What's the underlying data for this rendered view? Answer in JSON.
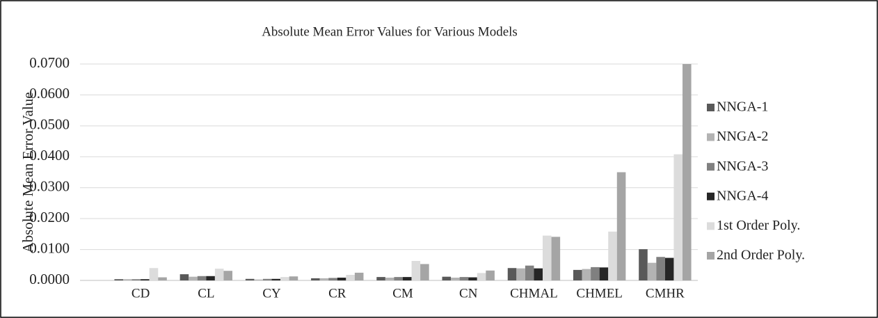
{
  "chart_data": {
    "type": "bar",
    "title": "Absolute Mean Error Values for Various Models",
    "y_label": "Absolute Mean Error Value",
    "categories": [
      "CD",
      "CL",
      "CY",
      "CR",
      "CM",
      "CN",
      "CHMAL",
      "CHMEL",
      "CMHR"
    ],
    "series": [
      {
        "name": "NNGA-1",
        "color": "#595959",
        "values": [
          0.0004,
          0.002,
          0.0005,
          0.0007,
          0.0011,
          0.0012,
          0.004,
          0.0034,
          0.0101
        ]
      },
      {
        "name": "NNGA-2",
        "color": "#b3b3b3",
        "values": [
          0.0004,
          0.0012,
          0.0003,
          0.0007,
          0.0009,
          0.0009,
          0.0039,
          0.0037,
          0.0057
        ]
      },
      {
        "name": "NNGA-3",
        "color": "#808080",
        "values": [
          0.0004,
          0.0014,
          0.0005,
          0.0008,
          0.0011,
          0.0011,
          0.0048,
          0.0043,
          0.0076
        ]
      },
      {
        "name": "NNGA-4",
        "color": "#262626",
        "values": [
          0.0004,
          0.0014,
          0.0005,
          0.0009,
          0.0011,
          0.001,
          0.0039,
          0.0042,
          0.0073
        ]
      },
      {
        "name": "1st Order Poly.",
        "color": "#dcdcdc",
        "values": [
          0.004,
          0.0038,
          0.0011,
          0.0018,
          0.0063,
          0.0024,
          0.0145,
          0.0158,
          0.0408
        ]
      },
      {
        "name": "2nd Order Poly.",
        "color": "#a5a5a5",
        "values": [
          0.001,
          0.0031,
          0.0013,
          0.0025,
          0.0053,
          0.0032,
          0.0141,
          0.035,
          0.07
        ]
      }
    ],
    "ylim": [
      0,
      0.07
    ],
    "yticks": [
      {
        "value": 0,
        "label": "0.0000"
      },
      {
        "value": 0.01,
        "label": "0.0100"
      },
      {
        "value": 0.02,
        "label": "0.0200"
      },
      {
        "value": 0.03,
        "label": "0.0300"
      },
      {
        "value": 0.04,
        "label": "0.0400"
      },
      {
        "value": 0.05,
        "label": "0.0500"
      },
      {
        "value": 0.06,
        "label": "0.0600"
      },
      {
        "value": 0.07,
        "label": "0.0700"
      }
    ],
    "grid": true,
    "legend": "right"
  }
}
